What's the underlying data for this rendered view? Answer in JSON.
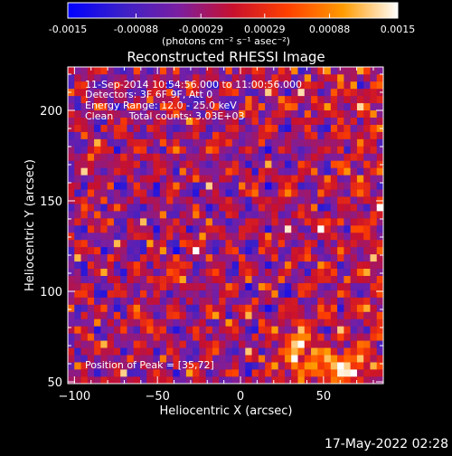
{
  "chart_data": {
    "type": "heatmap",
    "title": "Reconstructed RHESSI Image",
    "xlabel": "Heliocentric X (arcsec)",
    "ylabel": "Heliocentric Y (arcsec)",
    "xlim": [
      -104,
      86
    ],
    "ylim": [
      49,
      224
    ],
    "x_ticks": [
      -100,
      -50,
      0,
      50
    ],
    "y_ticks": [
      50,
      100,
      150,
      200
    ],
    "colorbar": {
      "min": -0.0015,
      "max": 0.0015,
      "tick_values": [
        -0.0015,
        -0.00088,
        -0.00029,
        0.00029,
        0.00088,
        0.0015
      ],
      "tick_labels": [
        "-0.0015",
        "-0.00088",
        "-0.00029",
        "0.00029",
        "0.00088",
        "0.0015"
      ],
      "unit_label": "(photons cm⁻² s⁻¹ asec⁻²)",
      "colors": [
        "#0000ff",
        "#3b20c8",
        "#7a1fa2",
        "#c8102e",
        "#ff4000",
        "#ff9b00",
        "#ffffff"
      ]
    },
    "annotations": [
      "11-Sep-2014 10:54:56.000 to 11:00:56.000",
      "Detectors: 3F 6F 9F, Att 0",
      "Energy Range: 12.0 - 25.0 keV",
      "Clean     Total counts: 3.03E+03"
    ],
    "peak_label": "Position of Peak = [35,72]",
    "peak": [
      35,
      72
    ],
    "grid_nx": 48,
    "grid_ny": 44,
    "hot_spots": [
      {
        "x": 35,
        "y": 72,
        "value": 0.0015
      },
      {
        "x": 50,
        "y": 60,
        "value": 0.0012
      },
      {
        "x": 60,
        "y": 55,
        "value": 0.0011
      },
      {
        "x": 30,
        "y": 58,
        "value": 0.0009
      },
      {
        "x": 72,
        "y": 62,
        "value": 0.0008
      },
      {
        "x": -60,
        "y": 80,
        "value": 0.0006
      },
      {
        "x": -40,
        "y": 110,
        "value": 0.0005
      },
      {
        "x": -20,
        "y": 125,
        "value": 0.0004
      }
    ]
  },
  "footer": {
    "timestamp": "17-May-2022 02:28"
  }
}
